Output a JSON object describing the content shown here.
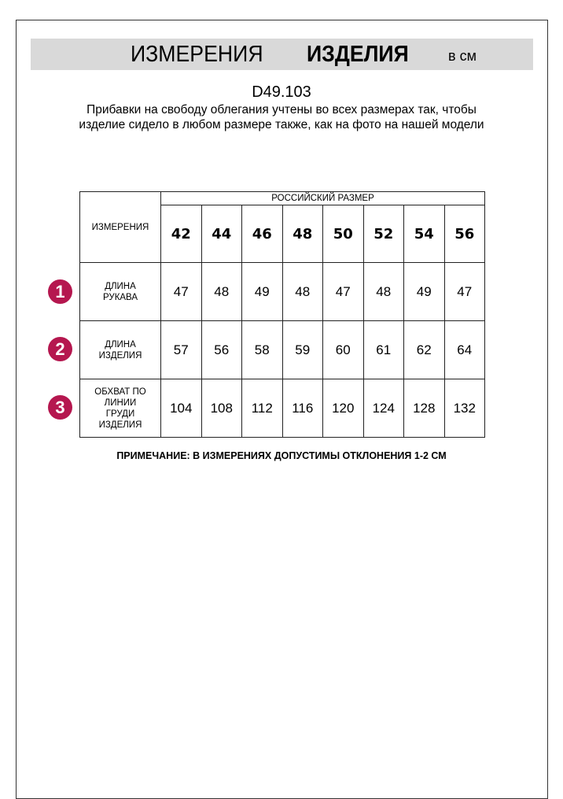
{
  "header": {
    "title_regular": "ИЗМЕРЕНИЯ",
    "title_bold": "ИЗДЕЛИЯ",
    "unit": "в см"
  },
  "product_code": "D49.103",
  "description": "Прибавки на свободу облегания учтены во всех размерах так, чтобы изделие сидело в любом размере также, как на фото на нашей модели",
  "table": {
    "corner_label": "ИЗМЕРЕНИЯ",
    "group_header": "РОССИЙСКИЙ РАЗМЕР",
    "sizes": [
      "42",
      "44",
      "46",
      "48",
      "50",
      "52",
      "54",
      "56"
    ],
    "rows": [
      {
        "badge": "1",
        "label": "ДЛИНА РУКАВА",
        "values": [
          "47",
          "48",
          "49",
          "48",
          "47",
          "48",
          "49",
          "47"
        ]
      },
      {
        "badge": "2",
        "label": "ДЛИНА ИЗДЕЛИЯ",
        "values": [
          "57",
          "56",
          "58",
          "59",
          "60",
          "61",
          "62",
          "64"
        ]
      },
      {
        "badge": "3",
        "label": "ОБХВАТ ПО ЛИНИИ ГРУДИ ИЗДЕЛИЯ",
        "values": [
          "104",
          "108",
          "112",
          "116",
          "120",
          "124",
          "128",
          "132"
        ]
      }
    ]
  },
  "footnote": "ПРИМЕЧАНИЕ: В ИЗМЕРЕНИЯХ ДОПУСТИМЫ ОТКЛОНЕНИЯ 1-2 СМ",
  "colors": {
    "badge": "#b5174f",
    "banner": "#d9d9d9"
  }
}
